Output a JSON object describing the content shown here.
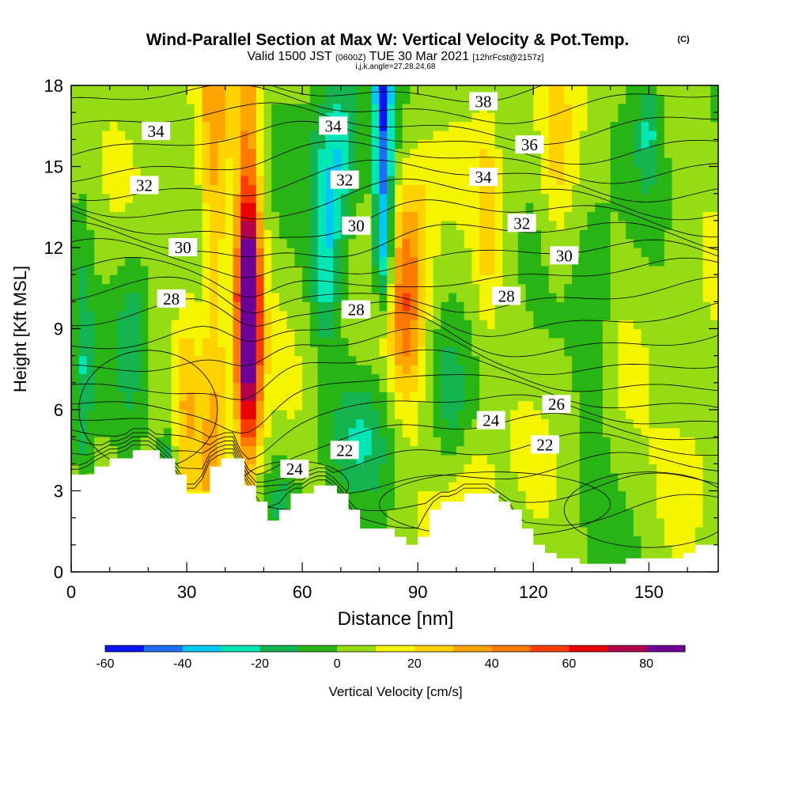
{
  "title": {
    "main": "Wind-Parallel Section at Max W: Vertical Velocity & Pot.Temp.",
    "copyright": "(C)",
    "valid_prefix": "Valid 1500 JST",
    "valid_utc": "(0600Z)",
    "valid_date": "TUE 30 Mar 2021",
    "forecast": "[12hrFcst@2157z]",
    "indices": "i,j,k,angle=27,28,24,68"
  },
  "chart_data": {
    "type": "heatmap",
    "xlabel": "Distance [nm]",
    "ylabel": "Height [Kft MSL]",
    "xlim": [
      0,
      168
    ],
    "ylim": [
      0,
      18
    ],
    "x_ticks": [
      "0",
      "30",
      "60",
      "90",
      "120",
      "150"
    ],
    "x_tick_values": [
      0,
      30,
      60,
      90,
      120,
      150
    ],
    "y_ticks": [
      "0",
      "3",
      "6",
      "9",
      "12",
      "15",
      "18"
    ],
    "y_tick_values": [
      0,
      3,
      6,
      9,
      12,
      15,
      18
    ],
    "colorbar": {
      "label": "Vertical Velocity [cm/s]",
      "tick_labels": [
        "-60",
        "-40",
        "-20",
        "0",
        "20",
        "40",
        "60",
        "80"
      ],
      "tick_values": [
        -60,
        -40,
        -20,
        0,
        20,
        40,
        60,
        80
      ],
      "range": [
        -60,
        90
      ],
      "bin_width": 10,
      "colors": [
        "#0a14f0",
        "#1e6ef5",
        "#00c8f5",
        "#00e6b4",
        "#14b450",
        "#28b414",
        "#96dc14",
        "#f5f500",
        "#ffd200",
        "#ffa500",
        "#ff7800",
        "#ff3c00",
        "#e60000",
        "#b4004b",
        "#6e0096"
      ]
    },
    "theta_contours": {
      "labeled_values": [
        "22",
        "24",
        "26",
        "28",
        "30",
        "32",
        "34",
        "36",
        "38"
      ],
      "labels": [
        {
          "text": "34",
          "x": 22,
          "y": 16.3
        },
        {
          "text": "32",
          "x": 19,
          "y": 14.3
        },
        {
          "text": "30",
          "x": 29,
          "y": 12.0
        },
        {
          "text": "28",
          "x": 26,
          "y": 10.1
        },
        {
          "text": "34",
          "x": 68,
          "y": 16.5
        },
        {
          "text": "32",
          "x": 71,
          "y": 14.5
        },
        {
          "text": "30",
          "x": 74,
          "y": 12.8
        },
        {
          "text": "28",
          "x": 74,
          "y": 9.7
        },
        {
          "text": "24",
          "x": 58,
          "y": 3.8
        },
        {
          "text": "22",
          "x": 71,
          "y": 4.5
        },
        {
          "text": "38",
          "x": 107,
          "y": 17.4
        },
        {
          "text": "36",
          "x": 119,
          "y": 15.8
        },
        {
          "text": "34",
          "x": 107,
          "y": 14.6
        },
        {
          "text": "32",
          "x": 117,
          "y": 12.9
        },
        {
          "text": "30",
          "x": 128,
          "y": 11.7
        },
        {
          "text": "28",
          "x": 113,
          "y": 10.2
        },
        {
          "text": "26",
          "x": 126,
          "y": 6.2
        },
        {
          "text": "24",
          "x": 109,
          "y": 5.6
        },
        {
          "text": "22",
          "x": 123,
          "y": 4.7
        }
      ]
    },
    "features": [
      {
        "name": "strong updraft core",
        "x": 46,
        "y_range": [
          3.5,
          18
        ],
        "max_cm_s": 88
      },
      {
        "name": "updraft",
        "x": 37,
        "y_range": [
          3,
          18
        ],
        "approx_cm_s": 35
      },
      {
        "name": "updraft",
        "x": 87,
        "y_range": [
          6,
          14
        ],
        "approx_cm_s": 40
      },
      {
        "name": "downdraft",
        "x": 81,
        "y_range": [
          12,
          18
        ],
        "approx_cm_s": -45
      }
    ],
    "terrain_kft": {
      "x": [
        0,
        3,
        6,
        10,
        13,
        16,
        20,
        23,
        27,
        30,
        33,
        36,
        39,
        42,
        45,
        48,
        51,
        54,
        57,
        60,
        63,
        66,
        69,
        72,
        75,
        78,
        81,
        84,
        87,
        90,
        93,
        96,
        99,
        102,
        105,
        108,
        111,
        114,
        117,
        120,
        123,
        126,
        129,
        132,
        135,
        138,
        141,
        144,
        147,
        150,
        153,
        156,
        159,
        162,
        165,
        168
      ],
      "h": [
        3.6,
        3.6,
        3.9,
        4.2,
        4.2,
        4.5,
        4.5,
        4.2,
        3.6,
        2.9,
        2.9,
        3.9,
        4.2,
        4.2,
        3.2,
        2.6,
        1.9,
        2.3,
        2.9,
        2.9,
        3.2,
        3.2,
        2.9,
        2.3,
        1.6,
        1.6,
        1.6,
        1.3,
        1.0,
        1.3,
        2.3,
        2.6,
        2.6,
        2.9,
        2.9,
        2.9,
        2.6,
        2.3,
        1.6,
        1.0,
        0.7,
        0.5,
        0.5,
        0.3,
        0.3,
        0.3,
        0.3,
        0.5,
        0.5,
        0.5,
        0.5,
        0.5,
        0.7,
        1.0,
        1.0,
        1.0
      ]
    }
  }
}
